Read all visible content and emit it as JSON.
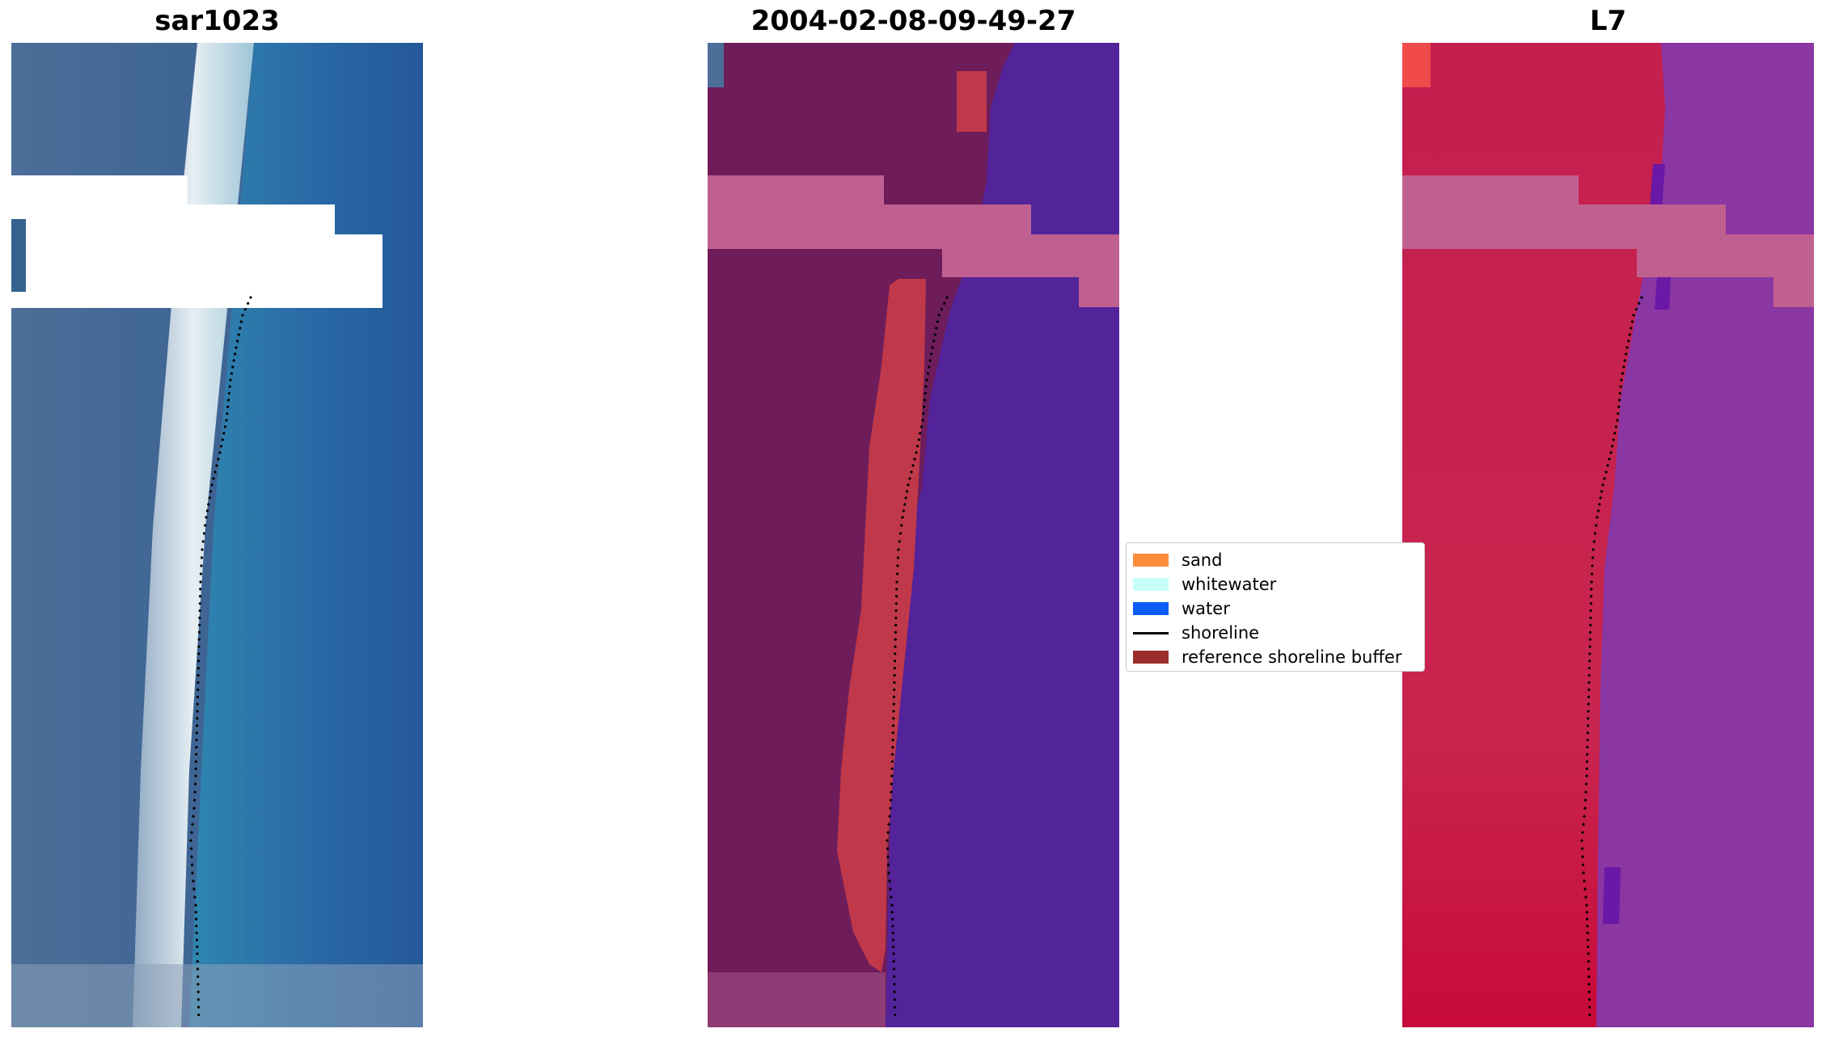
{
  "panels": [
    {
      "id": "rgb",
      "title": "sar1023"
    },
    {
      "id": "classified",
      "title": "2004-02-08-09-49-27"
    },
    {
      "id": "index",
      "title": "L7"
    }
  ],
  "legend": {
    "items": [
      {
        "label": "sand",
        "type": "patch",
        "color": "#ff8c3a"
      },
      {
        "label": "whitewater",
        "type": "patch",
        "color": "#c8fff9"
      },
      {
        "label": "water",
        "type": "patch",
        "color": "#0a5cf5"
      },
      {
        "label": "shoreline",
        "type": "line",
        "color": "#000000"
      },
      {
        "label": "reference shoreline buffer",
        "type": "patch",
        "color": "#9b2d2d"
      }
    ]
  },
  "colors": {
    "rgb_land": "#4a6d95",
    "rgb_water": "#2a64a0",
    "rgb_surf": "#dbe8f0",
    "class_land": "#6e1d5a",
    "class_water": "#53239a",
    "class_buffer": "#c0394a",
    "index_land": "#c41a46",
    "index_water": "#8a36a3",
    "cloud_mask": "#ffffff",
    "cloud_overlay": "#c06090"
  }
}
